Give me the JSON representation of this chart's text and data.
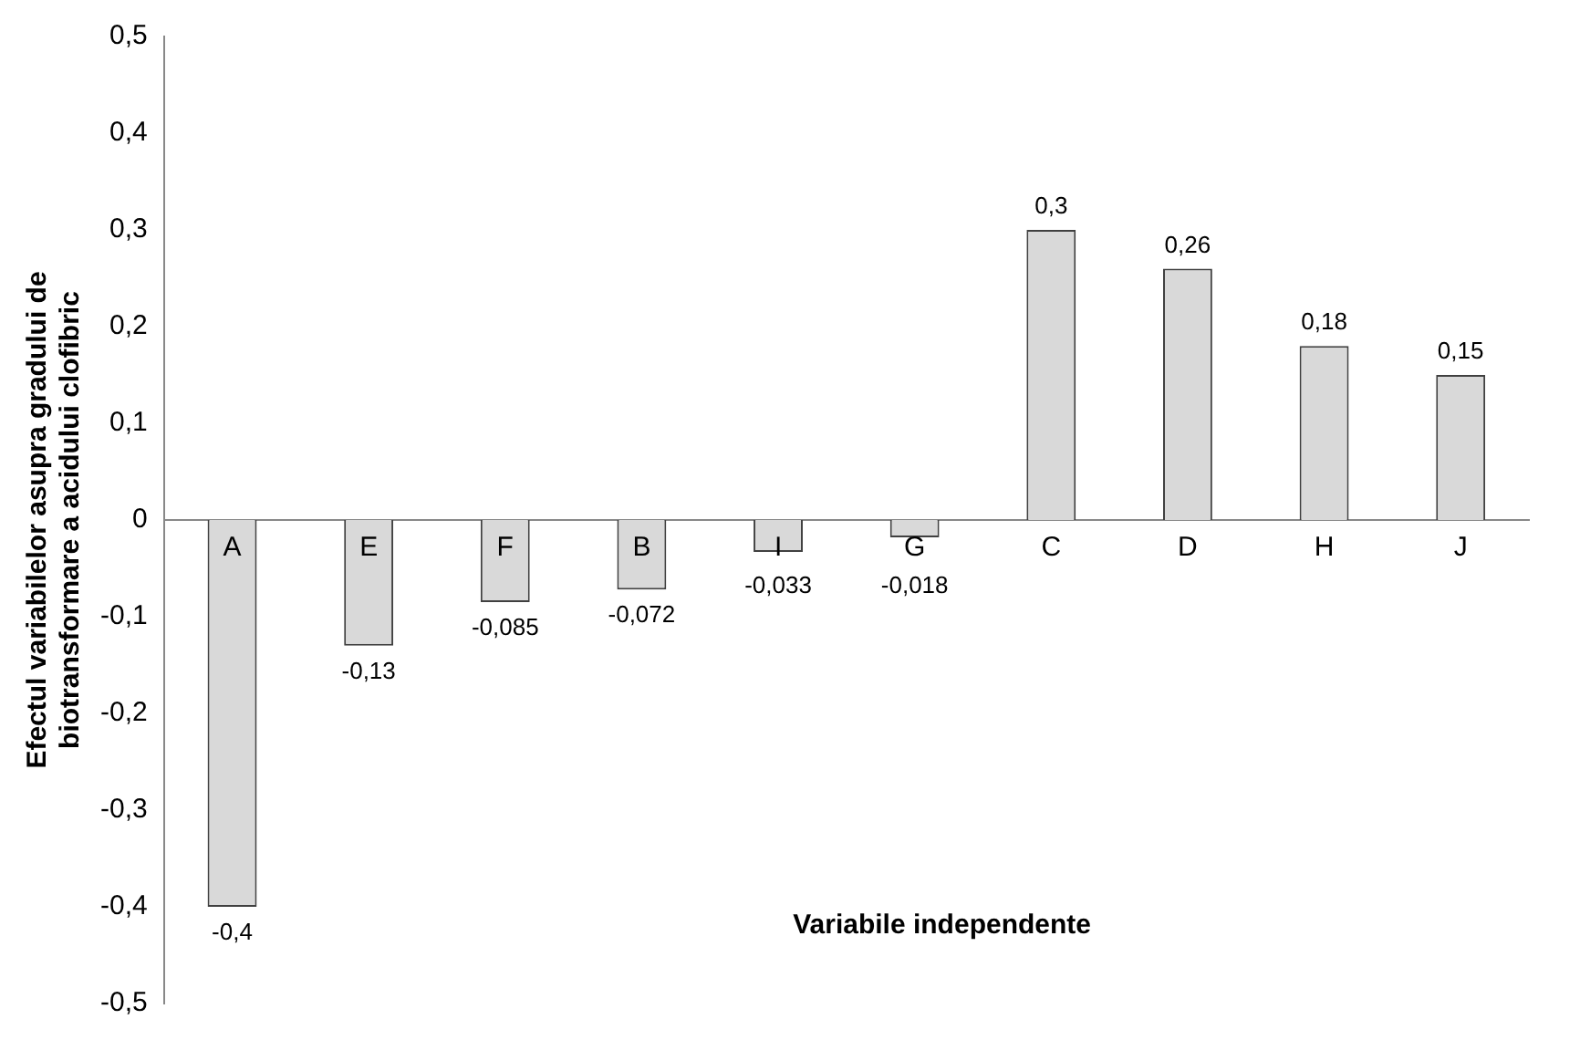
{
  "chart_data": {
    "type": "bar",
    "ylabel": "Efectul variabilelor asupra gradului de biotransformare a acidului clofibric",
    "xlabel": "Variabile independente",
    "categories": [
      "A",
      "E",
      "F",
      "B",
      "I",
      "G",
      "C",
      "D",
      "H",
      "J"
    ],
    "values": [
      -0.4,
      -0.13,
      -0.085,
      -0.072,
      -0.033,
      -0.018,
      0.3,
      0.26,
      0.18,
      0.15
    ],
    "value_labels": [
      "-0,4",
      "-0,13",
      "-0,085",
      "-0,072",
      "-0,033",
      "-0,018",
      "0,3",
      "0,26",
      "0,18",
      "0,15"
    ],
    "color": "#d9d9d9",
    "ylim": [
      -0.5,
      0.5
    ],
    "yticks": [
      {
        "value": -0.5,
        "label": "-0,5"
      },
      {
        "value": -0.4,
        "label": "-0,4"
      },
      {
        "value": -0.3,
        "label": "-0,3"
      },
      {
        "value": -0.2,
        "label": "-0,2"
      },
      {
        "value": -0.1,
        "label": "-0,1"
      },
      {
        "value": 0,
        "label": "0"
      },
      {
        "value": 0.1,
        "label": "0,1"
      },
      {
        "value": 0.2,
        "label": "0,2"
      },
      {
        "value": 0.3,
        "label": "0,3"
      },
      {
        "value": 0.4,
        "label": "0,4"
      },
      {
        "value": 0.5,
        "label": "0,5"
      }
    ],
    "grid": false,
    "legend": false
  }
}
